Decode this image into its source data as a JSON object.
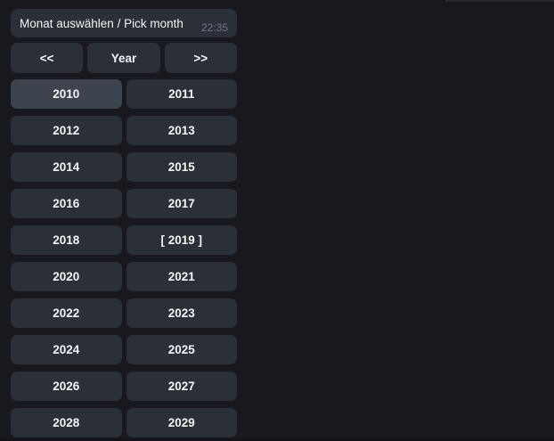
{
  "colors": {
    "background": "#17191e",
    "bubble": "#2b2f38",
    "button": "#2b2f38",
    "button_highlight": "#3e444d",
    "text": "#f2f4f6",
    "timestamp": "#6e7882"
  },
  "message": {
    "title": "Monat auswählen / Pick month",
    "time": "22:35"
  },
  "nav": {
    "prev_label": "<<",
    "mode_label": "Year",
    "next_label": ">>"
  },
  "years": [
    {
      "label": "2010",
      "highlight": true
    },
    {
      "label": "2011"
    },
    {
      "label": "2012"
    },
    {
      "label": "2013"
    },
    {
      "label": "2014"
    },
    {
      "label": "2015"
    },
    {
      "label": "2016"
    },
    {
      "label": "2017"
    },
    {
      "label": "2018"
    },
    {
      "label": "[ 2019 ]",
      "selected": true
    },
    {
      "label": "2020"
    },
    {
      "label": "2021"
    },
    {
      "label": "2022"
    },
    {
      "label": "2023"
    },
    {
      "label": "2024"
    },
    {
      "label": "2025"
    },
    {
      "label": "2026"
    },
    {
      "label": "2027"
    },
    {
      "label": "2028"
    },
    {
      "label": "2029"
    }
  ]
}
